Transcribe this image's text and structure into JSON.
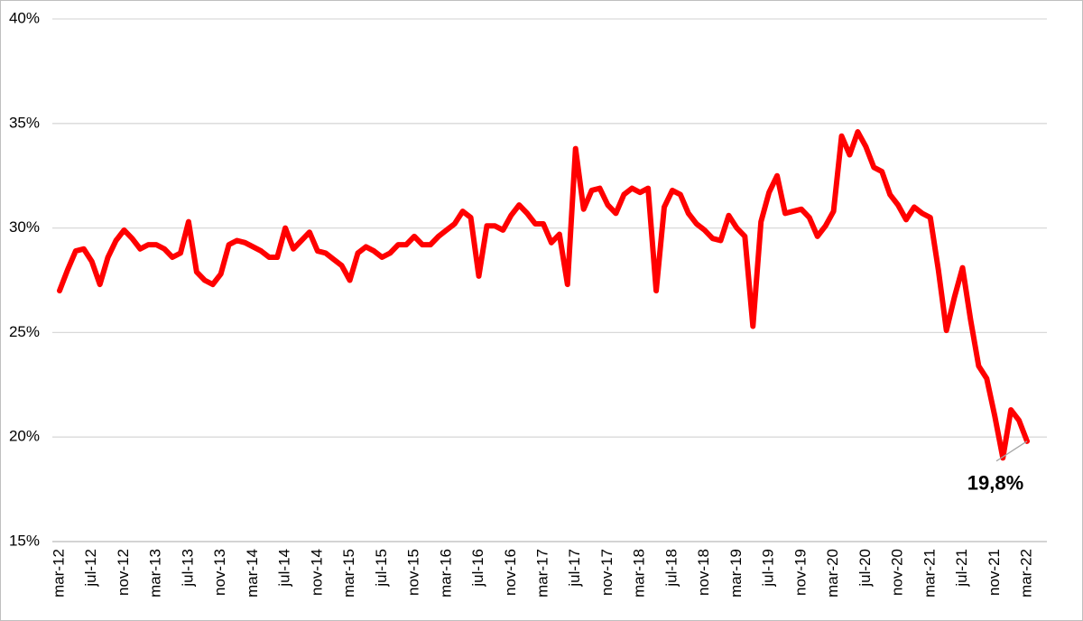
{
  "chart_data": {
    "type": "line",
    "categories": [
      "mar-12",
      null,
      null,
      null,
      "jul-12",
      null,
      null,
      null,
      "nov-12",
      null,
      null,
      null,
      "mar-13",
      null,
      null,
      null,
      "jul-13",
      null,
      null,
      null,
      "nov-13",
      null,
      null,
      null,
      "mar-14",
      null,
      null,
      null,
      "jul-14",
      null,
      null,
      null,
      "nov-14",
      null,
      null,
      null,
      "mar-15",
      null,
      null,
      null,
      "jul-15",
      null,
      null,
      null,
      "nov-15",
      null,
      null,
      null,
      "mar-16",
      null,
      null,
      null,
      "jul-16",
      null,
      null,
      null,
      "nov-16",
      null,
      null,
      null,
      "mar-17",
      null,
      null,
      null,
      "jul-17",
      null,
      null,
      null,
      "nov-17",
      null,
      null,
      null,
      "mar-18",
      null,
      null,
      null,
      "jul-18",
      null,
      null,
      null,
      "nov-18",
      null,
      null,
      null,
      "mar-19",
      null,
      null,
      null,
      "jul-19",
      null,
      null,
      null,
      "nov-19",
      null,
      null,
      null,
      "mar-20",
      null,
      null,
      null,
      "jul-20",
      null,
      null,
      null,
      "nov-20",
      null,
      null,
      null,
      "mar-21",
      null,
      null,
      null,
      "jul-21",
      null,
      null,
      null,
      "nov-21",
      null,
      null,
      null,
      "mar-22"
    ],
    "series": [
      {
        "color": "#ff0000",
        "values": [
          27.0,
          28.0,
          28.9,
          29.0,
          28.4,
          27.3,
          28.6,
          29.4,
          29.9,
          29.5,
          29.0,
          29.2,
          29.2,
          29.0,
          28.6,
          28.8,
          30.3,
          27.9,
          27.5,
          27.3,
          27.8,
          29.2,
          29.4,
          29.3,
          29.1,
          28.9,
          28.6,
          28.6,
          30.0,
          29.0,
          29.4,
          29.8,
          28.9,
          28.8,
          28.5,
          28.2,
          27.5,
          28.8,
          29.1,
          28.9,
          28.6,
          28.8,
          29.2,
          29.2,
          29.6,
          29.2,
          29.2,
          29.6,
          29.9,
          30.2,
          30.8,
          30.5,
          27.7,
          30.1,
          30.1,
          29.9,
          30.6,
          31.1,
          30.7,
          30.2,
          30.2,
          29.3,
          29.7,
          27.3,
          33.8,
          30.9,
          31.8,
          31.9,
          31.1,
          30.7,
          31.6,
          31.9,
          31.7,
          31.9,
          27.0,
          31.0,
          31.8,
          31.6,
          30.7,
          30.2,
          29.9,
          29.5,
          29.4,
          30.6,
          30.0,
          29.6,
          25.3,
          30.3,
          31.7,
          32.5,
          30.7,
          30.8,
          30.9,
          30.5,
          29.6,
          30.1,
          30.8,
          34.4,
          33.5,
          34.6,
          33.9,
          32.9,
          32.7,
          31.6,
          31.1,
          30.4,
          31.0,
          30.7,
          30.5,
          28.0,
          25.1,
          26.7,
          28.1,
          25.6,
          23.4,
          22.8,
          21.0,
          19.0,
          21.3,
          20.8,
          19.8
        ],
        "value_labels": [
          null,
          null,
          null,
          null,
          null,
          null,
          null,
          null,
          null,
          null,
          null,
          null,
          null,
          null,
          null,
          null,
          null,
          null,
          null,
          null,
          null,
          null,
          null,
          null,
          null,
          null,
          null,
          null,
          null,
          null,
          null,
          null,
          null,
          null,
          null,
          null,
          null,
          null,
          null,
          null,
          null,
          null,
          null,
          null,
          null,
          null,
          null,
          null,
          null,
          null,
          null,
          null,
          null,
          null,
          null,
          null,
          null,
          null,
          null,
          null,
          null,
          null,
          null,
          null,
          null,
          null,
          null,
          null,
          null,
          null,
          null,
          null,
          null,
          null,
          null,
          null,
          null,
          null,
          null,
          null,
          null,
          null,
          null,
          null,
          null,
          null,
          null,
          null,
          null,
          null,
          null,
          null,
          null,
          null,
          null,
          null,
          null,
          null,
          null,
          null,
          null,
          null,
          null,
          null,
          null,
          null,
          null,
          null,
          null,
          null,
          null,
          null,
          null,
          null,
          null,
          null,
          null,
          null,
          null,
          null,
          "19,8%"
        ]
      }
    ],
    "ylim": [
      15,
      40
    ],
    "yticks": [
      {
        "value": 15,
        "label": "15%"
      },
      {
        "value": 20,
        "label": "20%"
      },
      {
        "value": 25,
        "label": "25%"
      },
      {
        "value": 30,
        "label": "30%"
      },
      {
        "value": 35,
        "label": "35%"
      },
      {
        "value": 40,
        "label": "40%"
      }
    ],
    "grid": true
  }
}
